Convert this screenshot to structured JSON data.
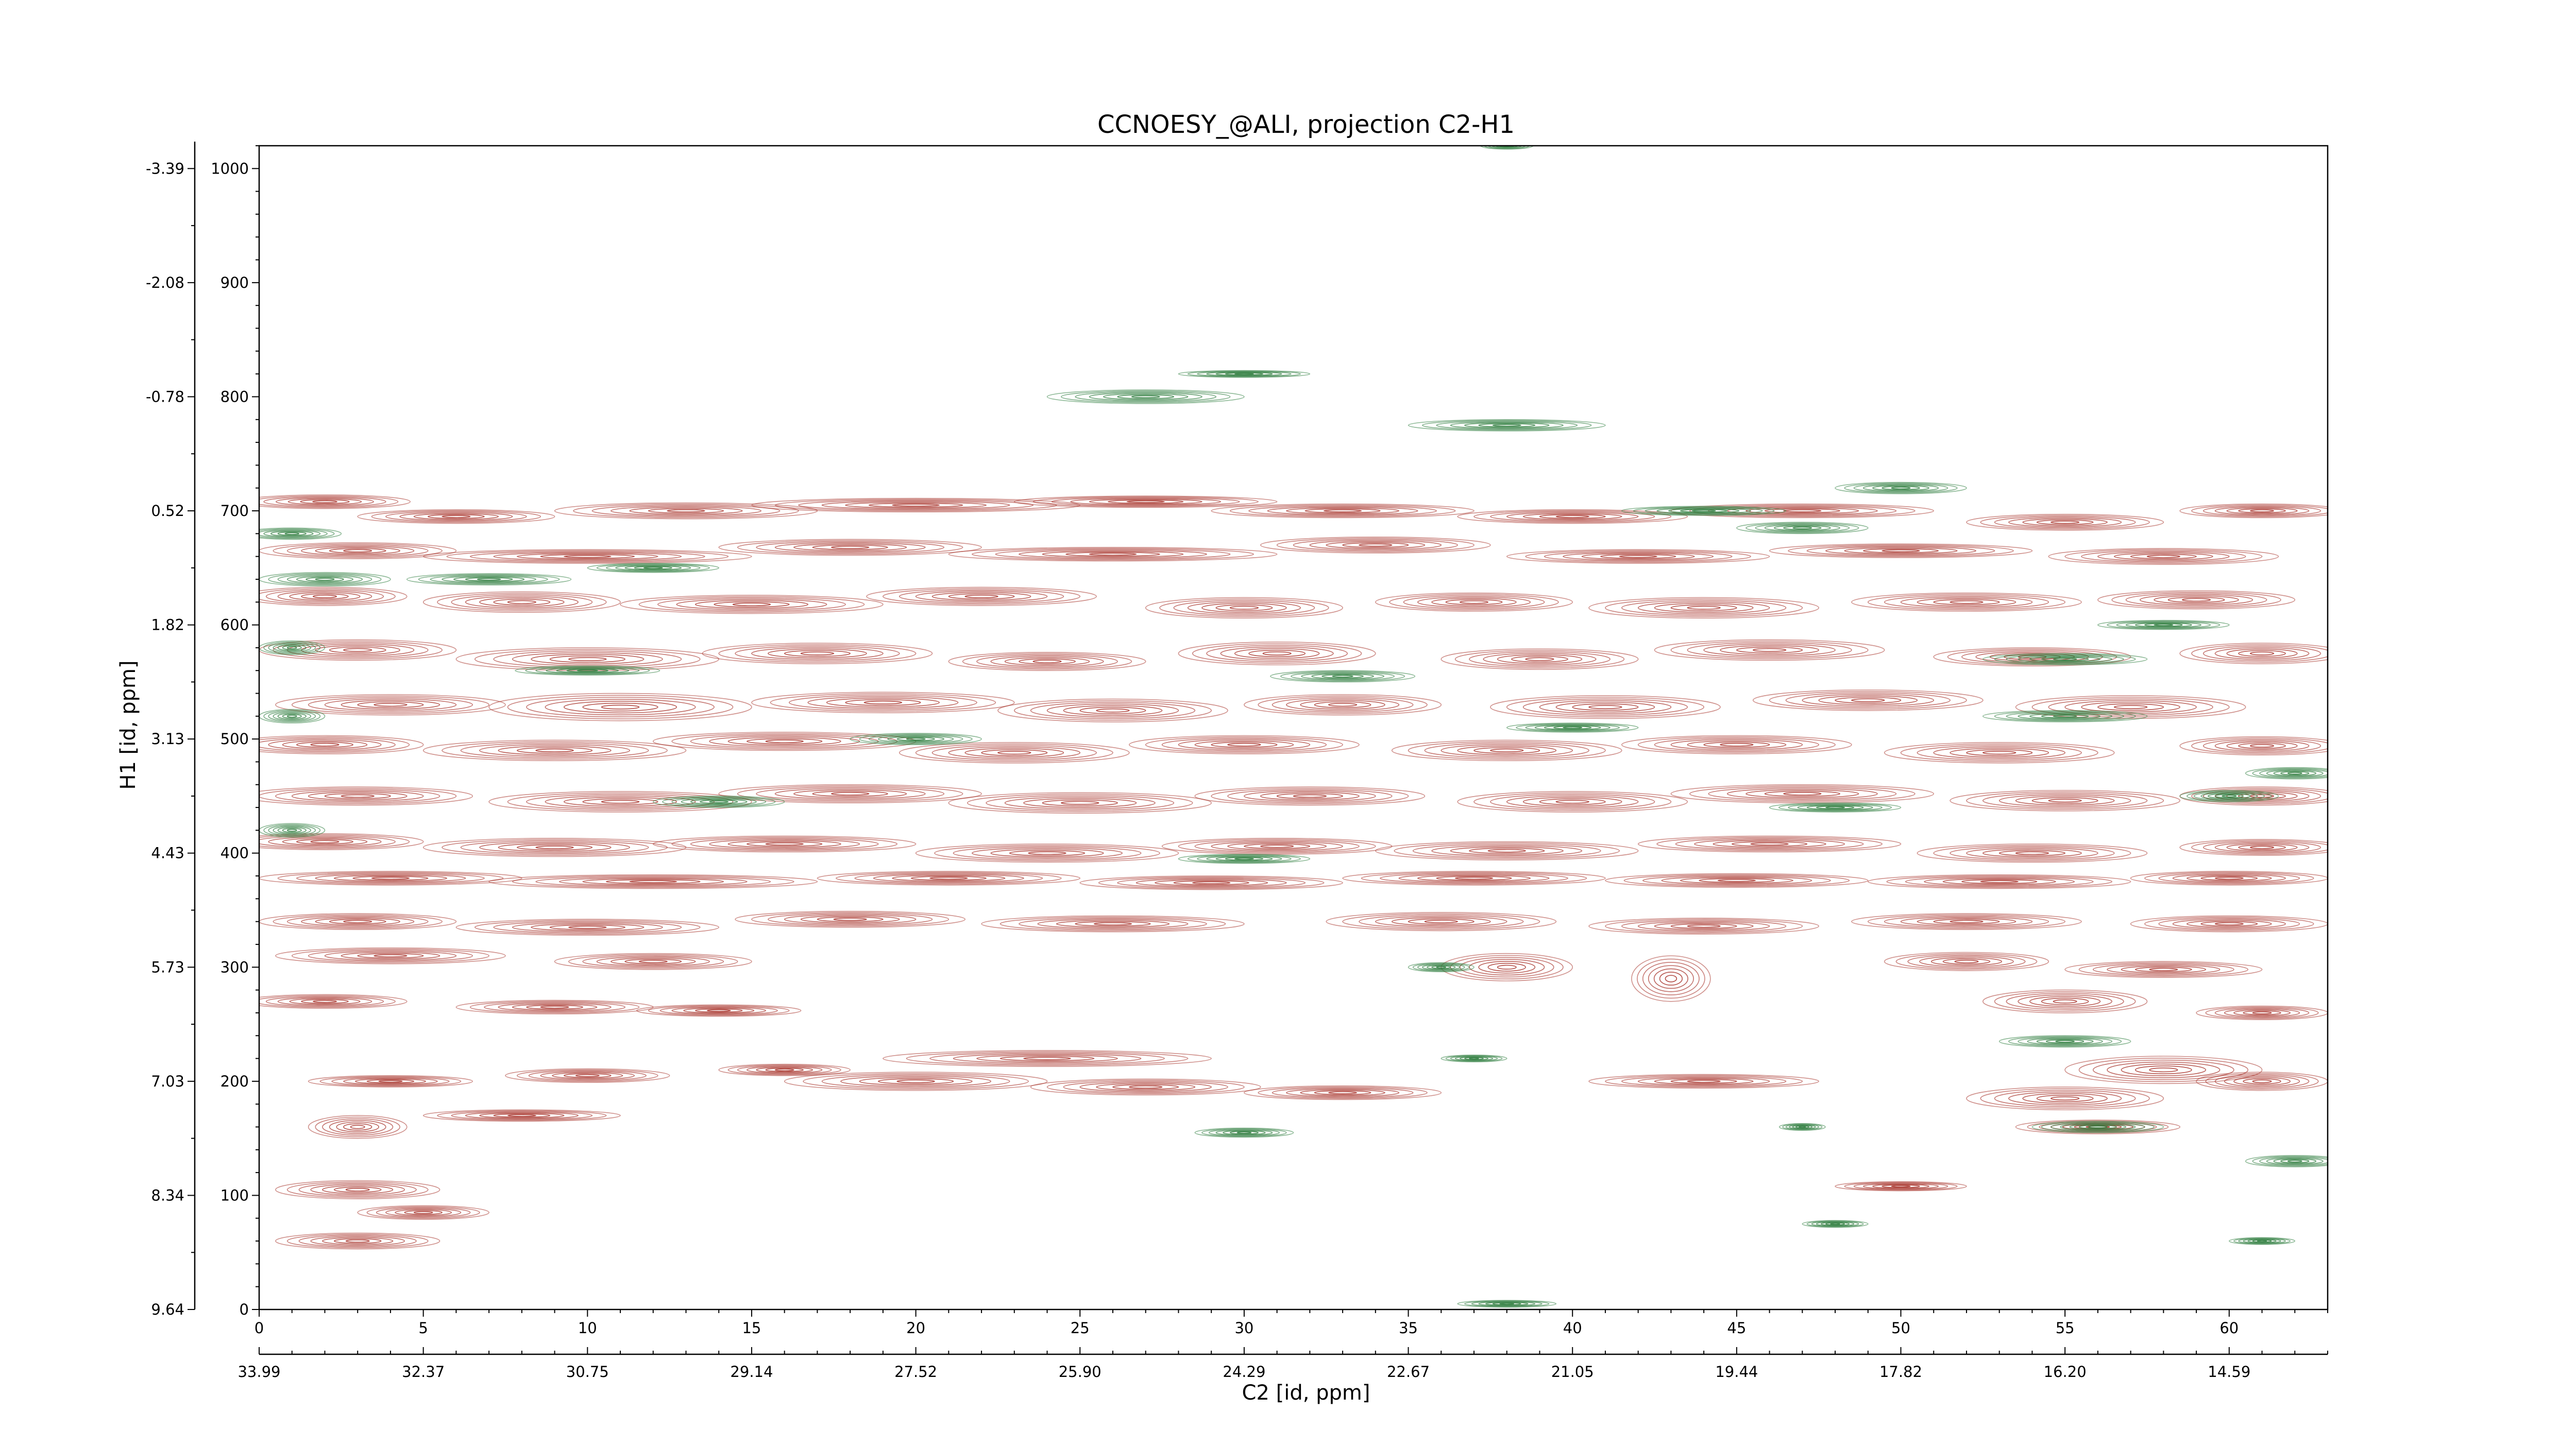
{
  "chart_data": {
    "type": "contour",
    "title": "CCNOESY_@ALI, projection C2-H1",
    "xlabel": "C2 [id, ppm]",
    "ylabel": "H1 [id, ppm]",
    "xlim": [
      0,
      63
    ],
    "ylim": [
      0,
      1020
    ],
    "x_ticks": [
      0,
      5,
      10,
      15,
      20,
      25,
      30,
      35,
      40,
      45,
      50,
      55,
      60
    ],
    "x_ppm_tick_labels": [
      "33.99",
      "32.37",
      "30.75",
      "29.14",
      "27.52",
      "25.90",
      "24.29",
      "22.67",
      "21.05",
      "19.44",
      "17.82",
      "16.20",
      "14.59"
    ],
    "y_ticks": [
      0,
      100,
      200,
      300,
      400,
      500,
      600,
      700,
      800,
      900,
      1000
    ],
    "y_ppm_tick_labels": [
      "9.64",
      "8.34",
      "7.03",
      "5.73",
      "4.43",
      "3.13",
      "1.82",
      "0.52",
      "-0.78",
      "-2.08",
      "-3.39"
    ],
    "colors": {
      "positive": "#a8342c",
      "negative": "#2e7d3e"
    },
    "series": [
      {
        "sign": "positive",
        "peaks": [
          [
            2,
            708,
            2.6,
            6
          ],
          [
            6,
            695,
            3,
            6
          ],
          [
            13,
            700,
            4,
            7
          ],
          [
            20,
            705,
            5,
            6
          ],
          [
            27,
            708,
            4,
            5
          ],
          [
            33,
            700,
            4,
            6
          ],
          [
            40,
            695,
            3.5,
            6
          ],
          [
            47,
            700,
            4,
            6
          ],
          [
            55,
            690,
            3,
            7
          ],
          [
            61,
            700,
            2.5,
            6
          ],
          [
            3,
            665,
            3,
            7
          ],
          [
            10,
            660,
            5,
            6
          ],
          [
            18,
            668,
            4,
            7
          ],
          [
            26,
            662,
            5,
            6
          ],
          [
            34,
            670,
            3.5,
            7
          ],
          [
            42,
            660,
            4,
            6
          ],
          [
            50,
            665,
            4,
            6
          ],
          [
            58,
            660,
            3.5,
            7
          ],
          [
            2,
            625,
            2.5,
            8
          ],
          [
            8,
            620,
            3,
            9
          ],
          [
            15,
            618,
            4,
            8
          ],
          [
            22,
            625,
            3.5,
            8
          ],
          [
            30,
            615,
            3,
            9
          ],
          [
            37,
            620,
            3,
            8
          ],
          [
            44,
            615,
            3.5,
            9
          ],
          [
            52,
            620,
            3.5,
            8
          ],
          [
            59,
            622,
            3,
            8
          ],
          [
            3,
            578,
            3,
            9
          ],
          [
            10,
            570,
            4,
            10
          ],
          [
            17,
            575,
            3.5,
            9
          ],
          [
            24,
            568,
            3,
            8
          ],
          [
            31,
            575,
            3,
            10
          ],
          [
            39,
            570,
            3,
            9
          ],
          [
            46,
            578,
            3.5,
            9
          ],
          [
            54,
            572,
            3,
            8
          ],
          [
            61,
            575,
            2.5,
            9
          ],
          [
            4,
            530,
            3.5,
            9
          ],
          [
            11,
            528,
            4,
            12
          ],
          [
            19,
            532,
            4,
            9
          ],
          [
            26,
            525,
            3.5,
            10
          ],
          [
            33,
            530,
            3,
            9
          ],
          [
            41,
            528,
            3.5,
            10
          ],
          [
            49,
            534,
            3.5,
            9
          ],
          [
            57,
            528,
            3.5,
            10
          ],
          [
            2,
            495,
            3,
            8
          ],
          [
            9,
            490,
            4,
            9
          ],
          [
            16,
            498,
            4,
            8
          ],
          [
            23,
            488,
            3.5,
            9
          ],
          [
            30,
            495,
            3.5,
            8
          ],
          [
            38,
            490,
            3.5,
            9
          ],
          [
            45,
            495,
            3.5,
            8
          ],
          [
            53,
            488,
            3.5,
            9
          ],
          [
            61,
            494,
            2.5,
            8
          ],
          [
            3,
            450,
            3.5,
            8
          ],
          [
            11,
            445,
            4,
            9
          ],
          [
            18,
            452,
            4,
            8
          ],
          [
            25,
            444,
            4,
            9
          ],
          [
            32,
            450,
            3.5,
            8
          ],
          [
            40,
            445,
            3.5,
            9
          ],
          [
            47,
            452,
            4,
            8
          ],
          [
            55,
            446,
            3.5,
            9
          ],
          [
            61,
            450,
            2.5,
            8
          ],
          [
            2,
            410,
            3,
            7
          ],
          [
            9,
            405,
            4,
            8
          ],
          [
            16,
            408,
            4,
            7
          ],
          [
            24,
            400,
            4,
            8
          ],
          [
            31,
            406,
            3.5,
            7
          ],
          [
            38,
            402,
            4,
            8
          ],
          [
            46,
            408,
            4,
            7
          ],
          [
            54,
            400,
            3.5,
            8
          ],
          [
            61,
            405,
            2.5,
            7
          ],
          [
            4,
            378,
            4,
            6
          ],
          [
            12,
            375,
            5,
            6
          ],
          [
            21,
            378,
            4,
            6
          ],
          [
            29,
            374,
            4,
            6
          ],
          [
            37,
            378,
            4,
            6
          ],
          [
            45,
            376,
            4,
            6
          ],
          [
            53,
            375,
            4,
            6
          ],
          [
            60,
            378,
            3,
            6
          ],
          [
            3,
            340,
            3,
            7
          ],
          [
            10,
            335,
            4,
            7
          ],
          [
            18,
            342,
            3.5,
            7
          ],
          [
            26,
            338,
            4,
            7
          ],
          [
            36,
            340,
            3.5,
            8
          ],
          [
            44,
            336,
            3.5,
            7
          ],
          [
            52,
            340,
            3.5,
            7
          ],
          [
            60,
            338,
            3,
            7
          ],
          [
            4,
            310,
            3.5,
            7
          ],
          [
            12,
            305,
            3,
            7
          ],
          [
            38,
            300,
            2,
            12
          ],
          [
            43,
            290,
            1.2,
            20
          ],
          [
            52,
            305,
            2.5,
            8
          ],
          [
            58,
            298,
            3,
            7
          ],
          [
            2,
            270,
            2.5,
            6
          ],
          [
            9,
            265,
            3,
            6
          ],
          [
            14,
            262,
            2.5,
            5
          ],
          [
            55,
            270,
            2.5,
            10
          ],
          [
            61,
            260,
            2,
            6
          ],
          [
            24,
            220,
            5,
            7
          ],
          [
            10,
            205,
            2.5,
            6
          ],
          [
            16,
            210,
            2,
            5
          ],
          [
            20,
            200,
            4,
            8
          ],
          [
            27,
            195,
            3.5,
            7
          ],
          [
            33,
            190,
            3,
            6
          ],
          [
            44,
            200,
            3.5,
            6
          ],
          [
            4,
            200,
            2.5,
            5
          ],
          [
            58,
            210,
            3,
            12
          ],
          [
            55,
            185,
            3,
            10
          ],
          [
            61,
            200,
            2,
            8
          ],
          [
            56,
            160,
            2.5,
            6
          ],
          [
            8,
            170,
            3,
            5
          ],
          [
            3,
            160,
            1.5,
            10
          ],
          [
            3,
            105,
            2.5,
            8
          ],
          [
            5,
            85,
            2,
            6
          ],
          [
            3,
            60,
            2.5,
            7
          ],
          [
            50,
            108,
            2,
            4
          ]
        ]
      },
      {
        "sign": "negative",
        "peaks": [
          [
            1,
            680,
            1.5,
            5
          ],
          [
            2,
            640,
            2,
            6
          ],
          [
            7,
            640,
            2.5,
            5
          ],
          [
            12,
            650,
            2,
            4
          ],
          [
            1,
            580,
            1,
            6
          ],
          [
            10,
            560,
            2.2,
            4
          ],
          [
            33,
            555,
            2.2,
            5
          ],
          [
            55,
            570,
            2.5,
            5
          ],
          [
            58,
            600,
            2,
            4
          ],
          [
            27,
            800,
            3,
            6
          ],
          [
            30,
            820,
            2,
            3
          ],
          [
            38,
            775,
            3,
            5
          ],
          [
            44,
            700,
            2.5,
            4
          ],
          [
            50,
            720,
            2,
            5
          ],
          [
            47,
            685,
            2,
            5
          ],
          [
            1,
            520,
            1,
            6
          ],
          [
            20,
            500,
            2,
            5
          ],
          [
            40,
            510,
            2,
            4
          ],
          [
            55,
            520,
            2.5,
            5
          ],
          [
            62,
            470,
            1.5,
            5
          ],
          [
            14,
            445,
            2,
            5
          ],
          [
            48,
            440,
            2,
            4
          ],
          [
            60,
            450,
            1.5,
            5
          ],
          [
            1,
            420,
            1,
            6
          ],
          [
            30,
            395,
            2,
            4
          ],
          [
            36,
            300,
            1,
            4
          ],
          [
            37,
            220,
            1,
            3
          ],
          [
            30,
            155,
            1.5,
            4
          ],
          [
            55,
            235,
            2,
            5
          ],
          [
            56,
            160,
            2,
            5
          ],
          [
            47,
            160,
            0.7,
            3
          ],
          [
            48,
            75,
            1,
            3
          ],
          [
            62,
            130,
            1.5,
            5
          ],
          [
            61,
            60,
            1,
            3
          ],
          [
            38,
            5,
            1.5,
            3
          ],
          [
            38,
            1020,
            0.8,
            3
          ]
        ]
      }
    ]
  }
}
